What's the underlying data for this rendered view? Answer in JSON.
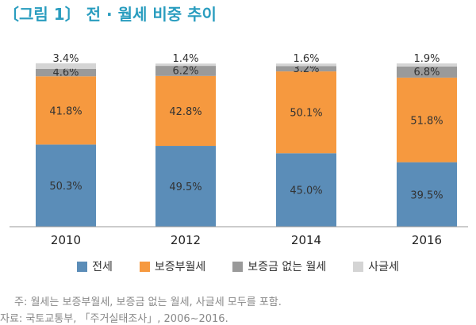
{
  "title": "〔그림 1〕 전 · 월세 비중 추이",
  "chart_data": {
    "type": "bar",
    "stacked": true,
    "categories": [
      "2010",
      "2012",
      "2014",
      "2016"
    ],
    "series": [
      {
        "name": "전세",
        "values": [
          50.3,
          49.5,
          45.0,
          39.5
        ],
        "labels": [
          "50.3%",
          "49.5%",
          "45.0%",
          "39.5%"
        ],
        "color": "#5b8db8"
      },
      {
        "name": "보증부월세",
        "values": [
          41.8,
          42.8,
          50.1,
          51.8
        ],
        "labels": [
          "41.8%",
          "42.8%",
          "50.1%",
          "51.8%"
        ],
        "color": "#f6993f"
      },
      {
        "name": "보증금 없는 월세",
        "values": [
          4.6,
          6.2,
          3.2,
          6.8
        ],
        "labels": [
          "4.6%",
          "6.2%",
          "3.2%",
          "6.8%"
        ],
        "color": "#9a9a9a"
      },
      {
        "name": "사글세",
        "values": [
          3.4,
          1.4,
          1.6,
          1.9
        ],
        "labels": [
          "3.4%",
          "1.4%",
          "1.6%",
          "1.9%"
        ],
        "color": "#d4d4d4"
      }
    ],
    "ylim": [
      0,
      100
    ],
    "grid": false,
    "legend_position": "bottom"
  },
  "notes": {
    "note1": "주: 월세는 보증부월세, 보증금 없는 월세, 사글세 모두를 포함.",
    "note2": "자료: 국토교통부, 「주거실태조사」, 2006~2016."
  }
}
